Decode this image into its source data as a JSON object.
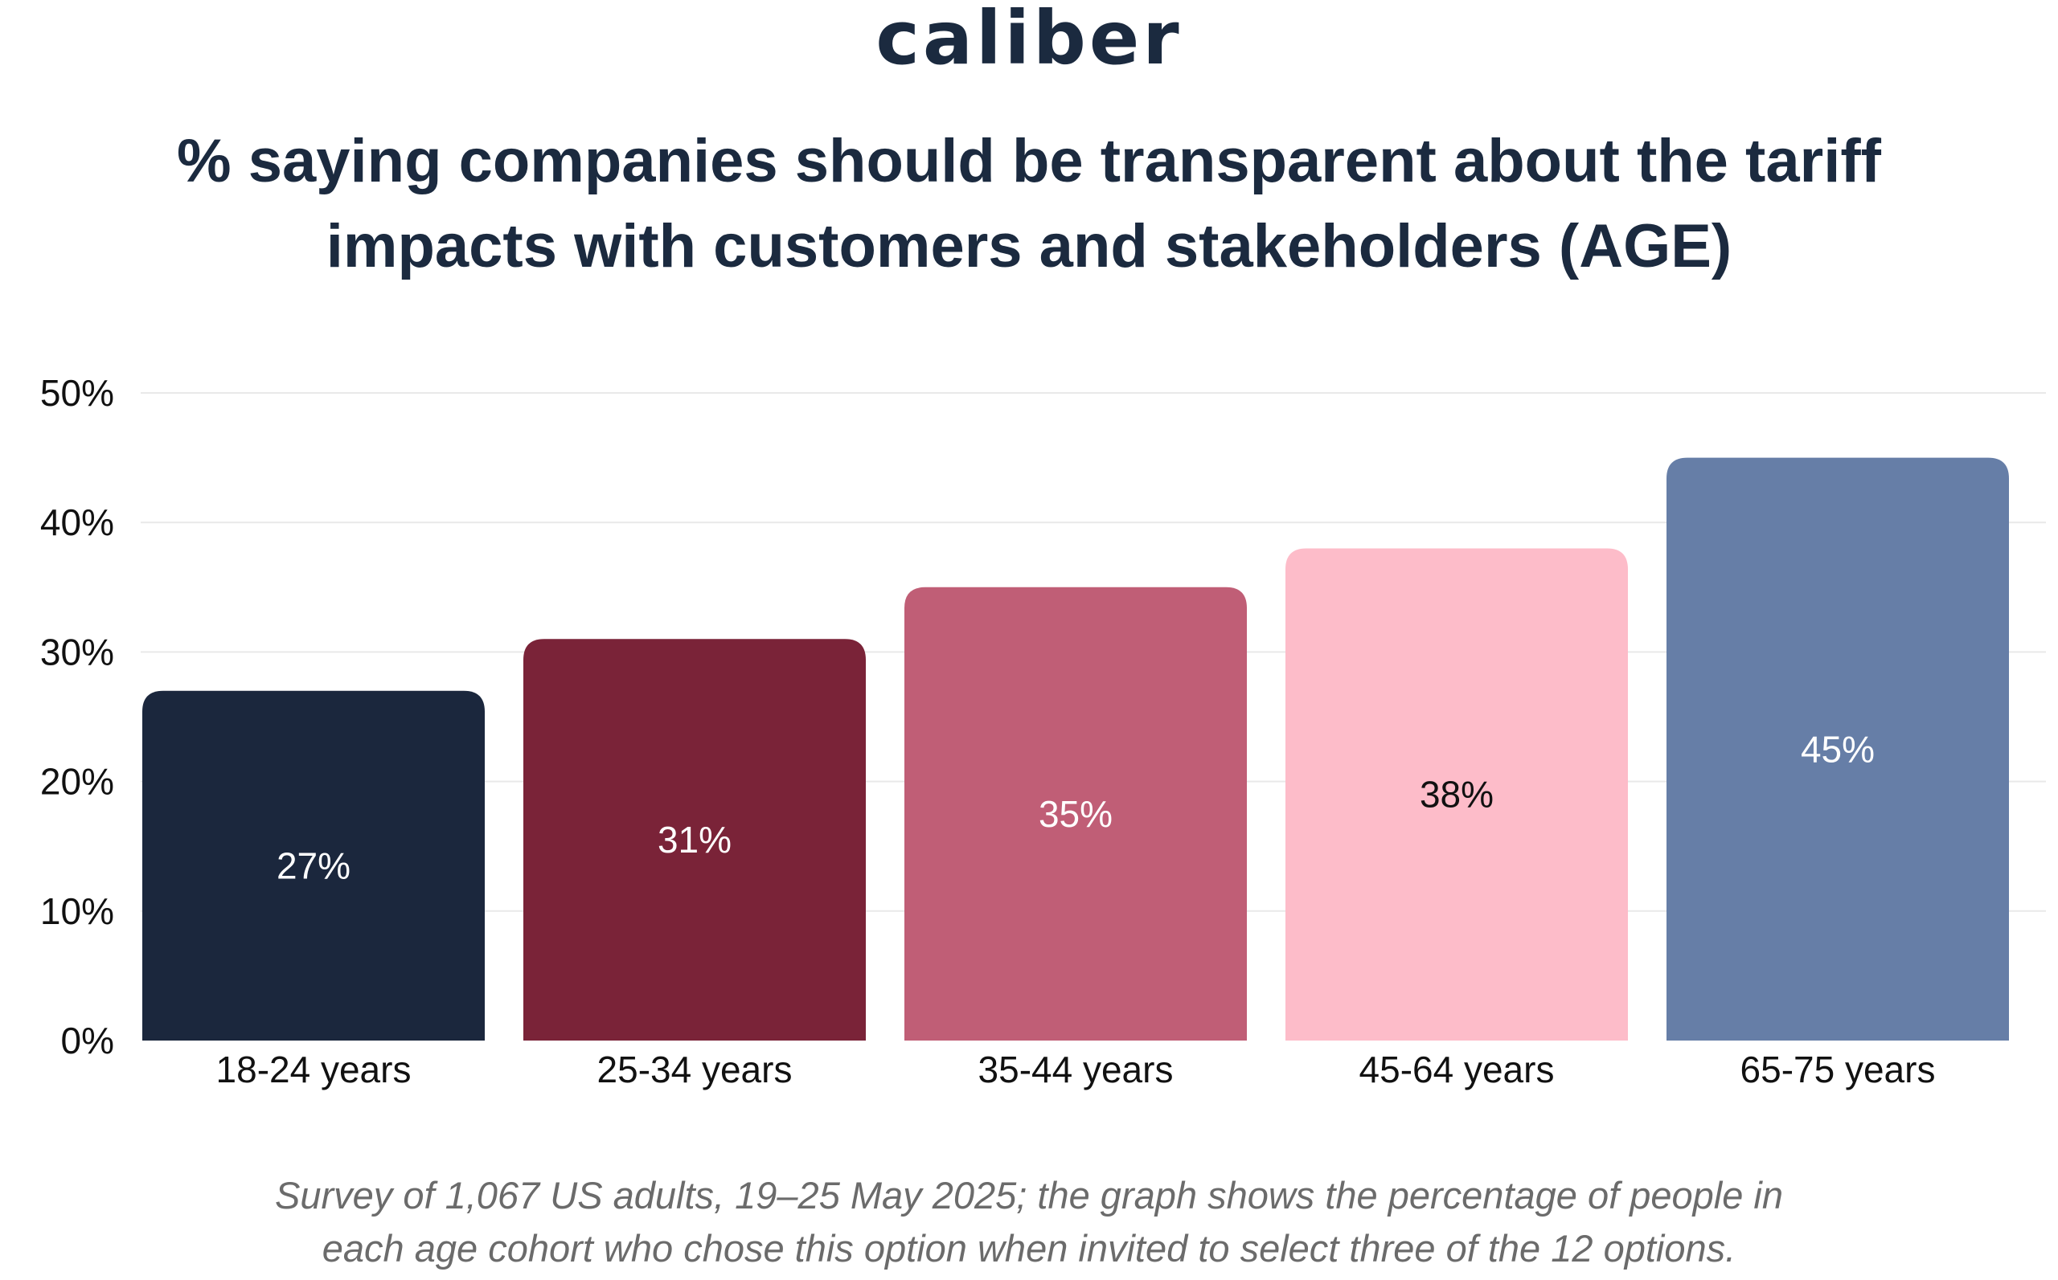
{
  "logo": {
    "text": "caliber"
  },
  "title_line1": "% saying companies should be transparent about the tariff",
  "title_line2": "impacts with customers and stakeholders (AGE)",
  "footnote": {
    "line1": "Survey of 1,067 US adults, 19–25 May 2025; the graph shows the percentage of people in",
    "line2": "each age cohort who chose this option when invited to select three of the 12 options."
  },
  "colors": {
    "text_dark": "#1b2a3f",
    "grid": "#e9e9e9",
    "bars": [
      "#1b273d",
      "#7a2338",
      "#c05e76",
      "#fdbcc9",
      "#667ea7"
    ],
    "label_light": "#ffffff",
    "label_dark": "#111111"
  },
  "chart_data": {
    "type": "bar",
    "title": "% saying companies should be transparent about the tariff impacts with customers and stakeholders (AGE)",
    "xlabel": "",
    "ylabel": "",
    "categories": [
      "18-24 years",
      "25-34 years",
      "35-44 years",
      "45-64 years",
      "65-75 years"
    ],
    "values": [
      27,
      31,
      35,
      38,
      45
    ],
    "value_labels": [
      "27%",
      "31%",
      "35%",
      "38%",
      "45%"
    ],
    "ylim": [
      0,
      50
    ],
    "yticks": [
      0,
      10,
      20,
      30,
      40,
      50
    ],
    "ytick_labels": [
      "0%",
      "10%",
      "20%",
      "30%",
      "40%",
      "50%"
    ],
    "grid": true,
    "legend": "none"
  }
}
